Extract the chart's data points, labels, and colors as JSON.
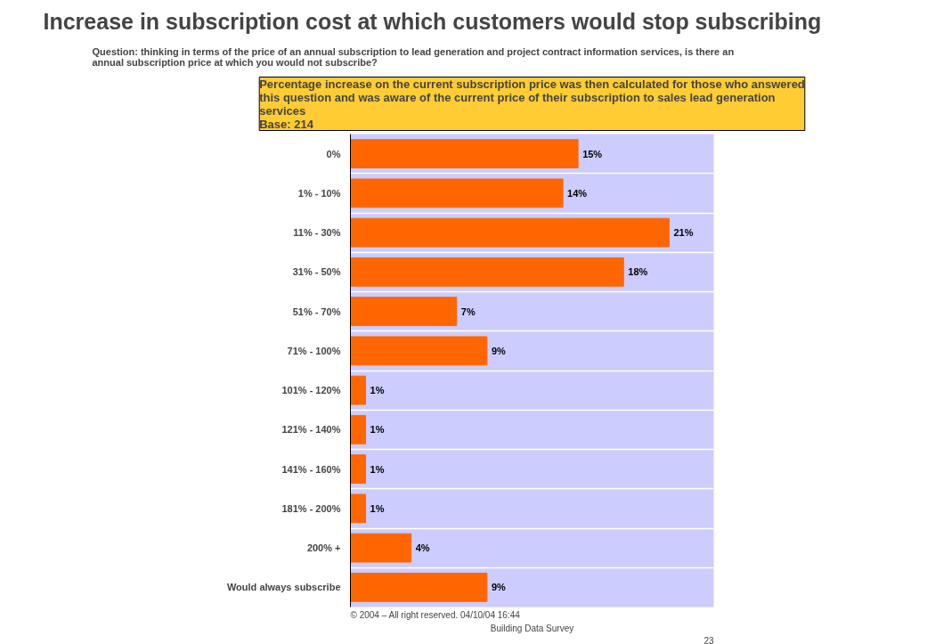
{
  "chart_data": {
    "type": "bar",
    "orientation": "horizontal",
    "title": "Increase in subscription cost at which customers would stop subscribing",
    "subtitle": "Question: thinking in terms of the price of an annual subscription to lead generation and project contract information services, is there an\nannual subscription price at which you would not subscribe?",
    "categories": [
      "0%",
      "1% - 10%",
      "11% - 30%",
      "31% - 50%",
      "51% - 70%",
      "71% - 100%",
      "101% - 120%",
      "121% - 140%",
      "141% - 160%",
      "181% - 200%",
      "200% +",
      "Would always subscribe"
    ],
    "values": [
      15,
      14,
      21,
      18,
      7,
      9,
      1,
      1,
      1,
      1,
      4,
      9
    ],
    "value_labels": [
      "15%",
      "14%",
      "21%",
      "18%",
      "7%",
      "9%",
      "1%",
      "1%",
      "1%",
      "1%",
      "4%",
      "9%"
    ],
    "color": "#ff6600",
    "grid": "y",
    "annotations": [
      "Percentage increase on the current subscription price was then calculated for those who answered\nthis question and was aware of the current price of their subscription to sales lead generation\nservices\nBase: 214",
      "© 2004 – All right reserved.   04/10/04 16:44",
      "Building Data Survey",
      "23"
    ]
  }
}
